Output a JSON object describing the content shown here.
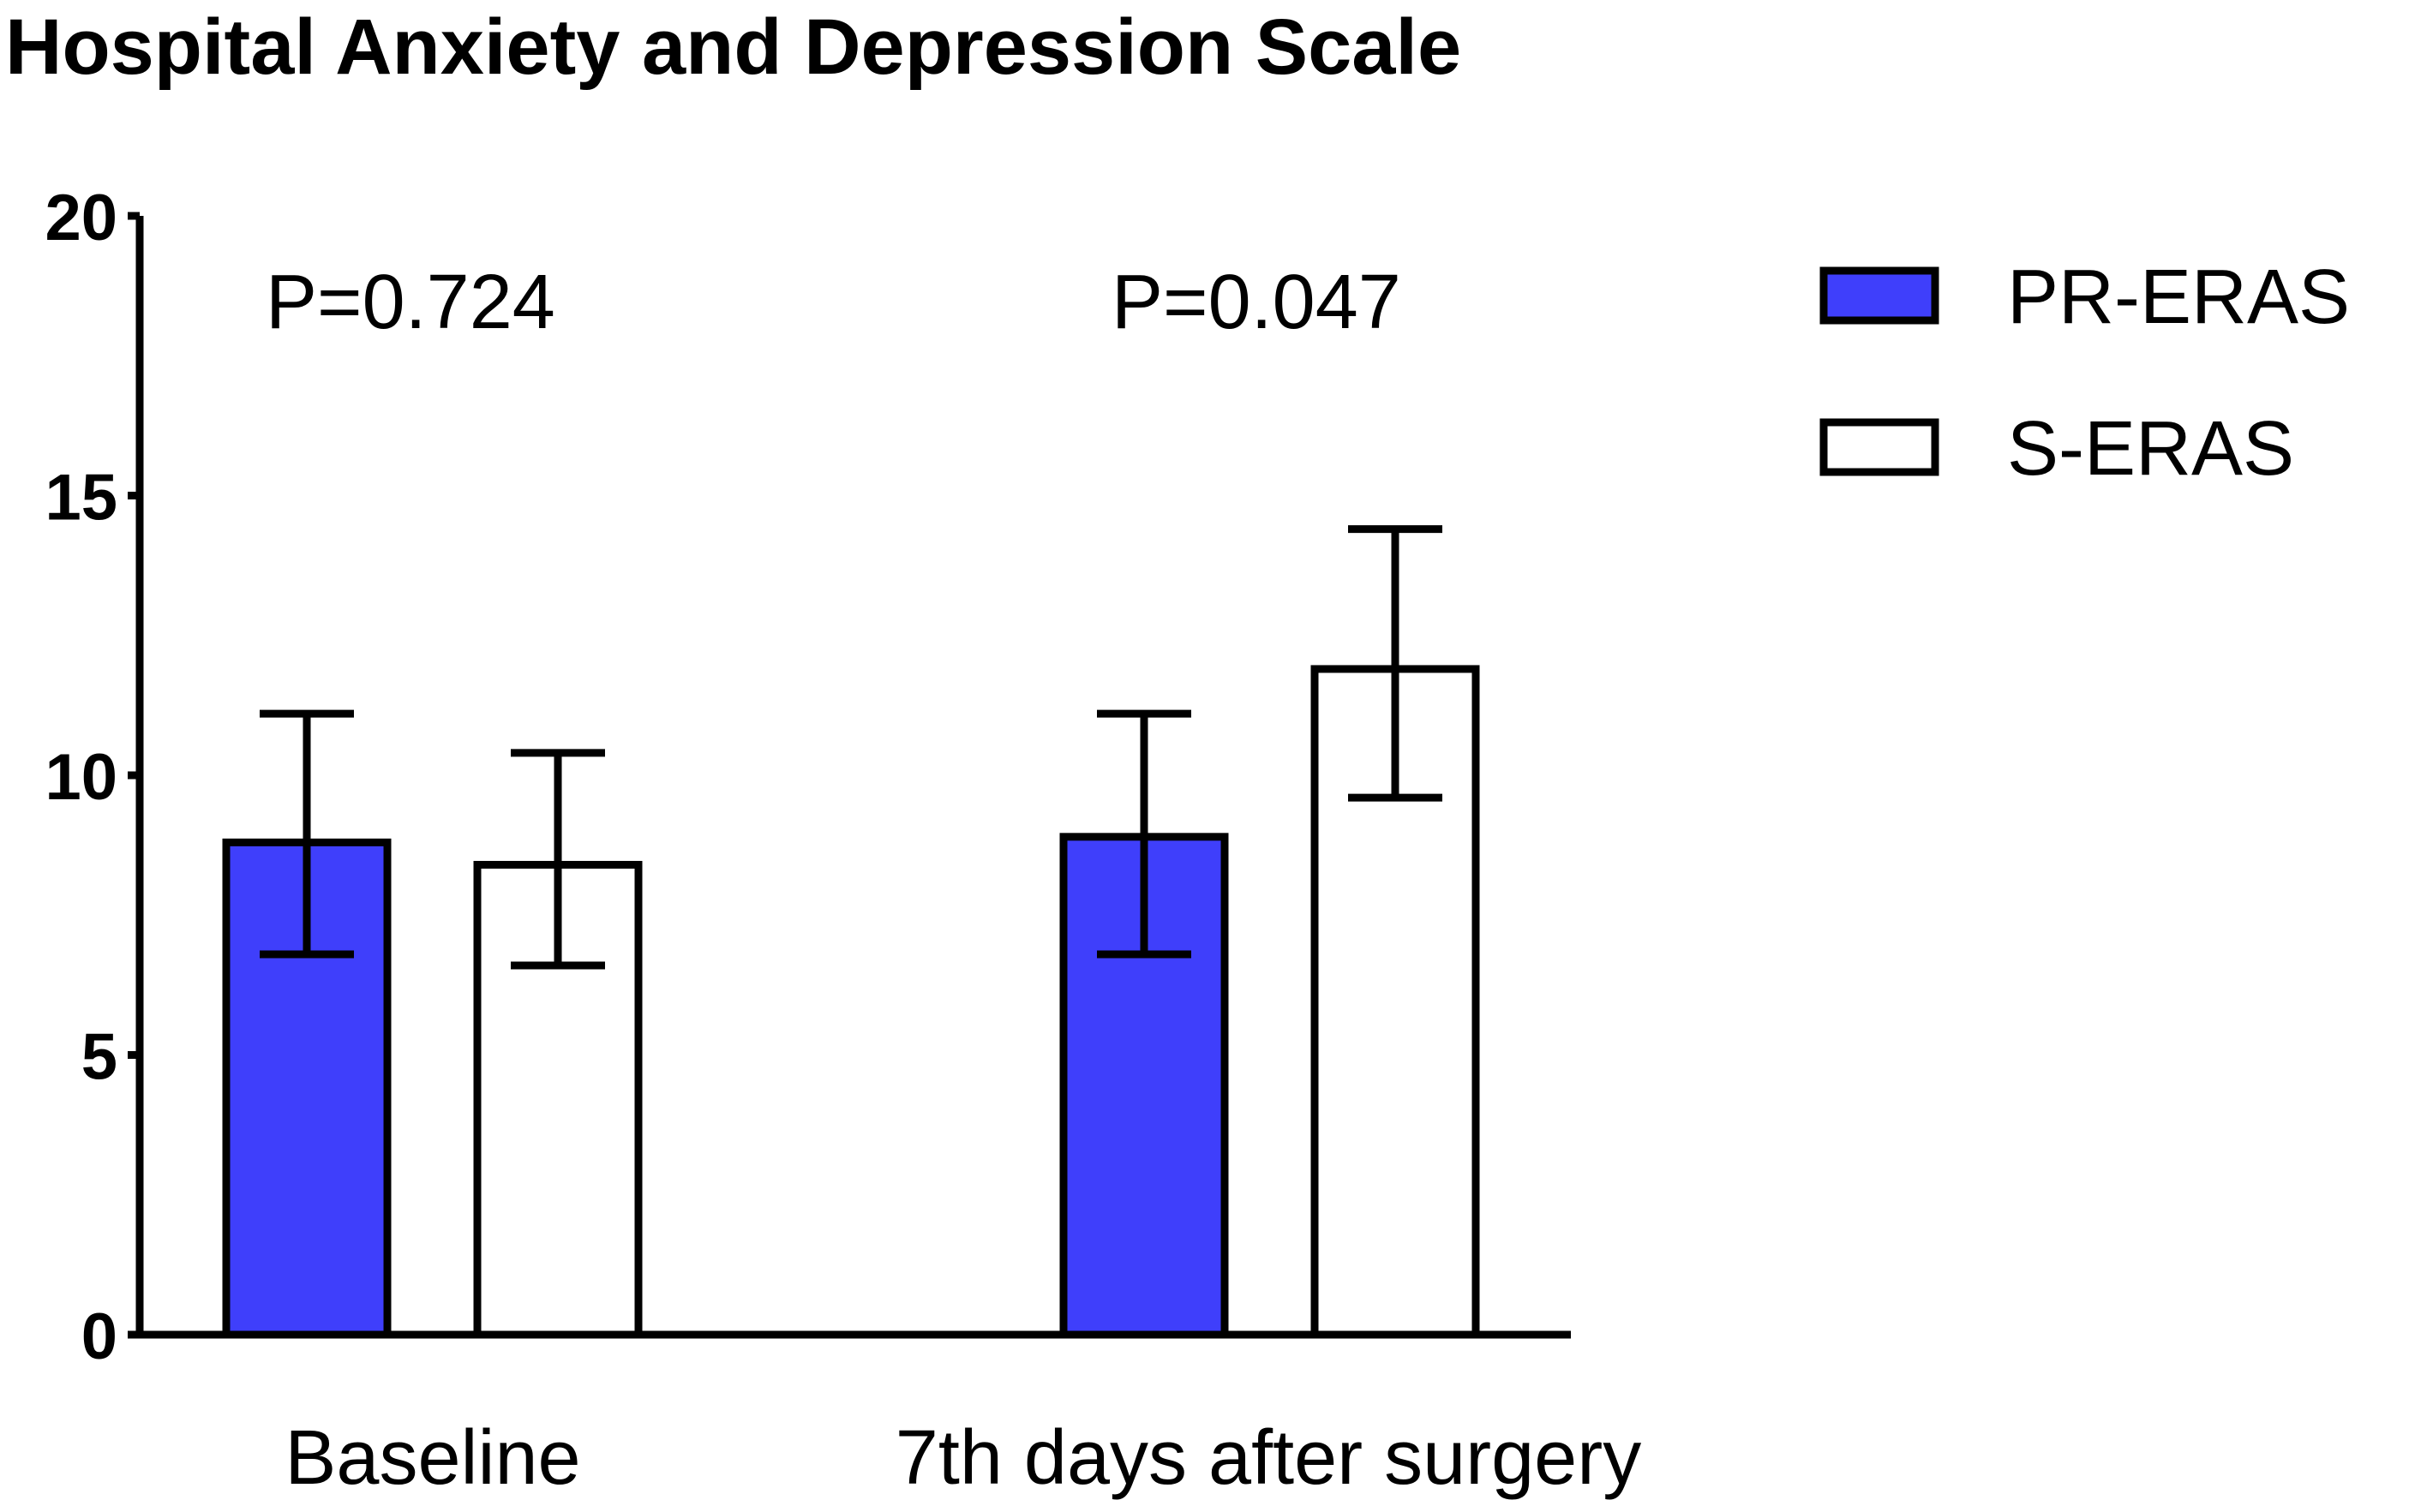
{
  "chart_data": {
    "type": "bar",
    "title": "Hospital Anxiety and Depression Scale",
    "xlabel": "",
    "ylabel": "",
    "ylim": [
      0,
      20
    ],
    "yticks": [
      "0",
      "5",
      "10",
      "15",
      "20"
    ],
    "categories": [
      "Baseline",
      "7th days after surgery"
    ],
    "series": [
      {
        "name": "PR-ERAS",
        "color": "#3f3ffb",
        "values": [
          8.8,
          8.9
        ],
        "error_low": [
          6.8,
          6.8
        ],
        "error_high": [
          11.1,
          11.1
        ]
      },
      {
        "name": "S-ERAS",
        "color": "#ffffff",
        "values": [
          8.4,
          11.9
        ],
        "error_low": [
          6.6,
          9.6
        ],
        "error_high": [
          10.4,
          14.4
        ]
      }
    ],
    "annotations": [
      "P=0.724",
      "P=0.047"
    ],
    "legend_position": "top-right",
    "grid": false
  }
}
